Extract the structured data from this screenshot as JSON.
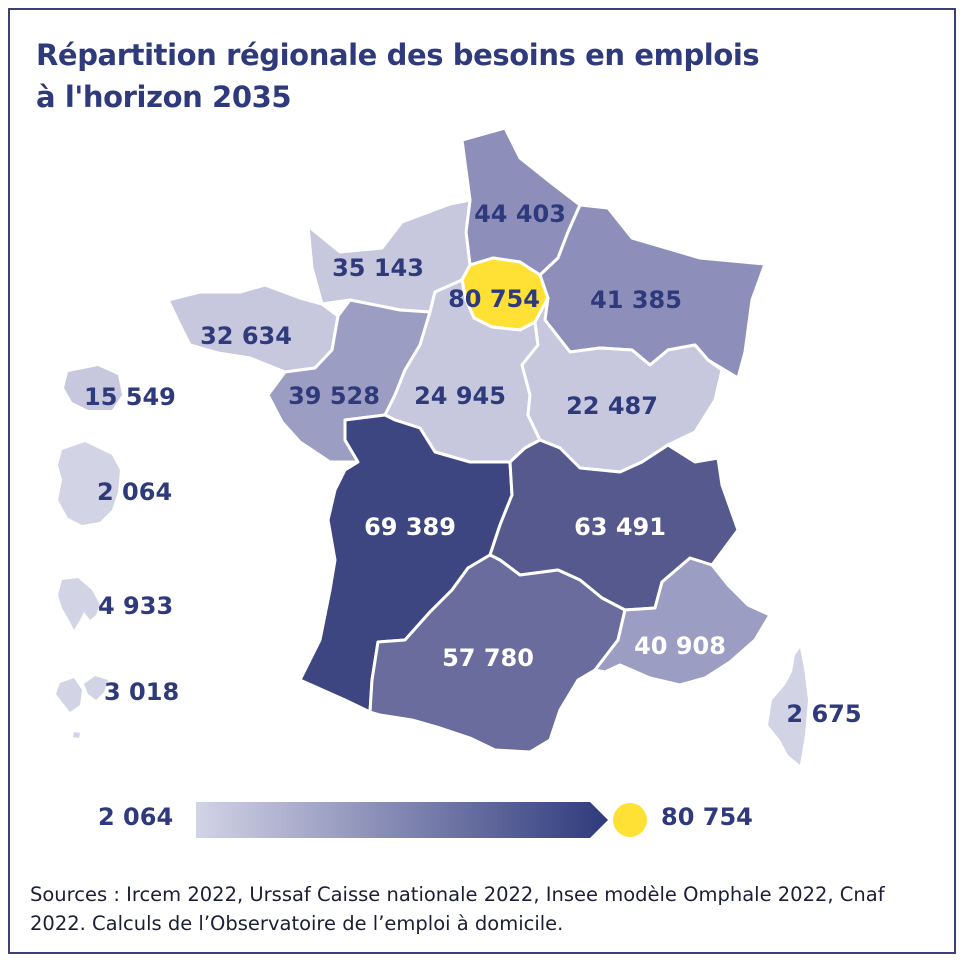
{
  "title": {
    "line1": "Répartition régionale des besoins en emplois",
    "line2": "à l'horizon 2035"
  },
  "colors": {
    "frame": "#3a4079",
    "title_text": "#2f3a7c",
    "label_dark": "#2f3a7c",
    "label_light": "#ffffff",
    "highlight": "#ffe135",
    "scale_min": "#d3d3e6",
    "scale_max": "#2f3a7c"
  },
  "regions": [
    {
      "id": "hauts-de-france",
      "value": "44 403",
      "fill": "#8d8fba",
      "label_color": "#2f3a7c"
    },
    {
      "id": "normandie",
      "value": "35 143",
      "fill": "#c7c8de",
      "label_color": "#2f3a7c"
    },
    {
      "id": "ile-de-france",
      "value": "80 754",
      "fill": "#ffe135",
      "label_color": "#2f3a7c"
    },
    {
      "id": "grand-est",
      "value": "41 385",
      "fill": "#8d8fba",
      "label_color": "#2f3a7c"
    },
    {
      "id": "bretagne",
      "value": "32 634",
      "fill": "#c7c8de",
      "label_color": "#2f3a7c"
    },
    {
      "id": "pays-de-la-loire",
      "value": "39 528",
      "fill": "#9c9dc3",
      "label_color": "#2f3a7c"
    },
    {
      "id": "centre-val-de-loire",
      "value": "24 945",
      "fill": "#c7c8de",
      "label_color": "#2f3a7c"
    },
    {
      "id": "bourgogne-franche-comte",
      "value": "22 487",
      "fill": "#c7c8de",
      "label_color": "#2f3a7c"
    },
    {
      "id": "nouvelle-aquitaine",
      "value": "69 389",
      "fill": "#3d4680",
      "label_color": "#ffffff"
    },
    {
      "id": "auvergne-rhone-alpes",
      "value": "63 491",
      "fill": "#55598d",
      "label_color": "#ffffff"
    },
    {
      "id": "occitanie",
      "value": "57 780",
      "fill": "#696c9c",
      "label_color": "#ffffff"
    },
    {
      "id": "provence-alpes-cote-d-azur",
      "value": "40 908",
      "fill": "#9c9dc3",
      "label_color": "#ffffff"
    },
    {
      "id": "corse",
      "value": "2 675",
      "fill": "#d3d3e6",
      "label_color": "#2f3a7c"
    }
  ],
  "overseas": [
    {
      "id": "reunion",
      "value": "15 549",
      "fill": "#c7c8de"
    },
    {
      "id": "guyane",
      "value": "2 064",
      "fill": "#d3d3e6"
    },
    {
      "id": "martinique",
      "value": "4 933",
      "fill": "#d3d3e6"
    },
    {
      "id": "guadeloupe",
      "value": "3 018",
      "fill": "#d3d3e6"
    }
  ],
  "legend": {
    "min_label": "2 064",
    "max_label": "80 754"
  },
  "sources": "Sources : Ircem 2022, Urssaf Caisse nationale 2022, Insee modèle Omphale 2022, Cnaf 2022. Calculs de l’Observatoire de l’emploi à domicile."
}
